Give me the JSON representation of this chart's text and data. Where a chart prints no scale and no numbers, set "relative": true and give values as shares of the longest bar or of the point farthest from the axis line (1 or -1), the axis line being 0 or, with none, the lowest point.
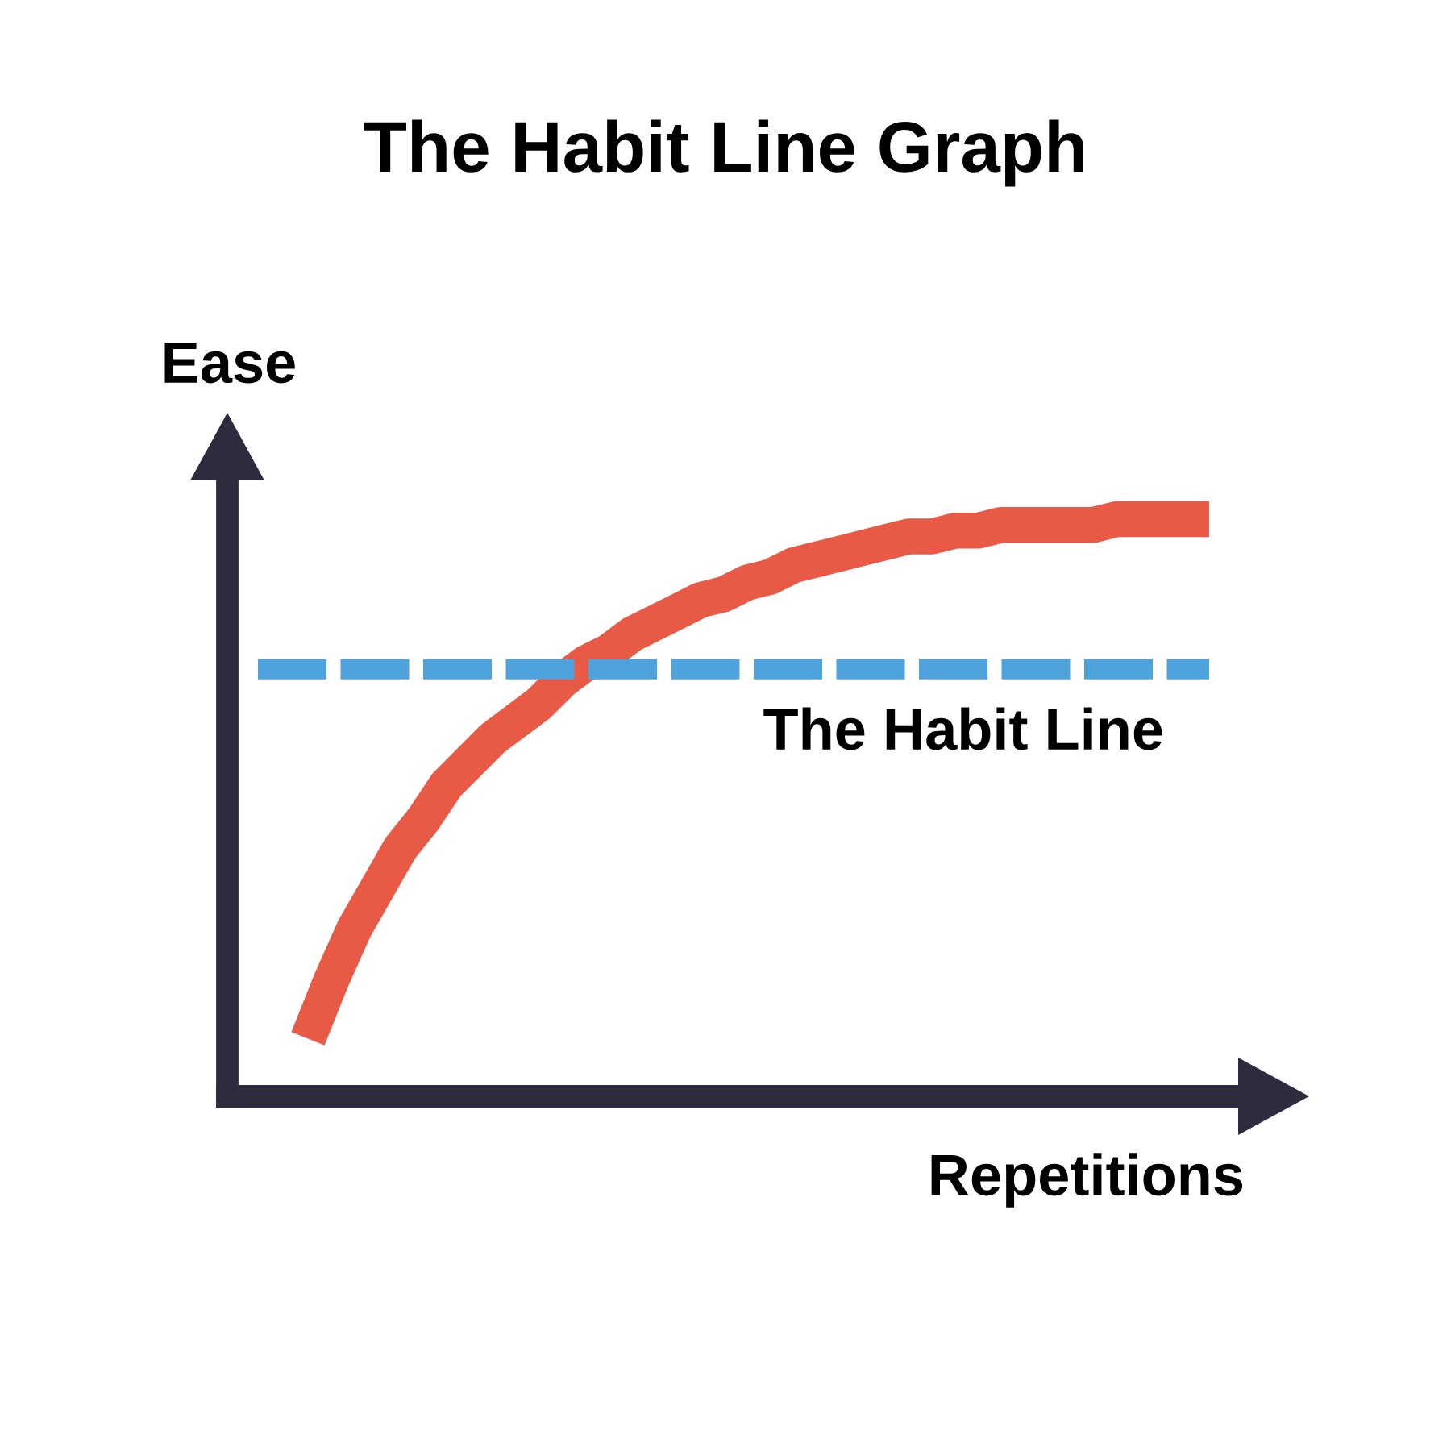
{
  "chart_data": {
    "type": "line",
    "title": "The Habit Line Graph",
    "xlabel": "Repetitions",
    "ylabel": "Ease",
    "relative": true,
    "tick_labels": false,
    "marker": "none",
    "line_style": "solid",
    "categories": [
      null,
      null,
      null,
      null,
      null,
      null,
      null,
      null,
      null,
      null,
      null,
      null,
      null,
      null,
      null,
      null,
      null,
      null,
      null,
      null,
      null,
      null,
      null,
      null,
      null,
      null,
      null,
      null,
      null,
      null,
      null,
      null,
      null,
      null,
      null,
      null,
      null,
      null,
      null,
      null
    ],
    "series": [
      {
        "color": "#e85a45",
        "values": [
          0.1,
          0.2,
          0.29,
          0.36,
          0.43,
          0.48,
          0.54,
          0.58,
          0.62,
          0.65,
          0.68,
          0.72,
          0.75,
          0.77,
          0.8,
          0.82,
          0.84,
          0.86,
          0.87,
          0.89,
          0.9,
          0.92,
          0.93,
          0.94,
          0.95,
          0.96,
          0.97,
          0.97,
          0.98,
          0.98,
          0.99,
          0.99,
          0.99,
          0.99,
          0.99,
          1.0,
          1.0,
          1.0,
          1.0,
          1.0
        ]
      }
    ],
    "ref_lines": [
      {
        "axis": "y",
        "value": 0.74,
        "label": "The Habit Line",
        "color": "#4fa3dc",
        "line_style": "dashed"
      }
    ]
  }
}
